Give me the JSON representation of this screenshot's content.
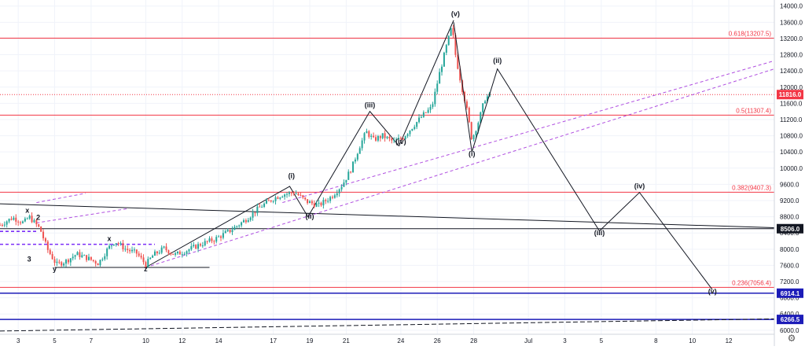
{
  "chart_data": {
    "type": "candlestick",
    "instrument_hint": "BTCUSD",
    "yticks": [
      6000,
      6400,
      6800,
      7200,
      7600,
      8000,
      8400,
      8800,
      9200,
      9600,
      10000,
      10400,
      10800,
      11200,
      11600,
      12000,
      12400,
      12800,
      13200,
      13600,
      14000
    ],
    "ylim": [
      5900,
      14150
    ],
    "xticks": [
      {
        "label": "3",
        "day": 3
      },
      {
        "label": "5",
        "day": 5
      },
      {
        "label": "7",
        "day": 7
      },
      {
        "label": "10",
        "day": 10
      },
      {
        "label": "12",
        "day": 12
      },
      {
        "label": "14",
        "day": 14
      },
      {
        "label": "17",
        "day": 17
      },
      {
        "label": "19",
        "day": 19
      },
      {
        "label": "21",
        "day": 21
      },
      {
        "label": "24",
        "day": 24
      },
      {
        "label": "26",
        "day": 26
      },
      {
        "label": "28",
        "day": 28
      },
      {
        "label": "Jul",
        "day": 31
      },
      {
        "label": "3",
        "day": 33
      },
      {
        "label": "5",
        "day": 35
      },
      {
        "label": "8",
        "day": 38
      },
      {
        "label": "10",
        "day": 40
      },
      {
        "label": "12",
        "day": 42
      }
    ],
    "xlim": [
      2.0,
      44.5
    ],
    "price_path": [
      [
        2.0,
        8600
      ],
      [
        2.7,
        8780
      ],
      [
        3.3,
        8650
      ],
      [
        3.6,
        8800
      ],
      [
        4.2,
        8500
      ],
      [
        4.6,
        8000
      ],
      [
        5.1,
        7620
      ],
      [
        5.6,
        7700
      ],
      [
        6.2,
        7880
      ],
      [
        6.8,
        7780
      ],
      [
        7.4,
        7650
      ],
      [
        7.9,
        8000
      ],
      [
        8.3,
        8200
      ],
      [
        8.9,
        8000
      ],
      [
        9.5,
        7900
      ],
      [
        10.0,
        7620
      ],
      [
        10.4,
        7850
      ],
      [
        11.0,
        8020
      ],
      [
        11.6,
        7860
      ],
      [
        12.3,
        7980
      ],
      [
        13.0,
        8120
      ],
      [
        13.8,
        8250
      ],
      [
        14.6,
        8450
      ],
      [
        15.4,
        8700
      ],
      [
        16.3,
        9050
      ],
      [
        17.0,
        9250
      ],
      [
        17.5,
        9350
      ],
      [
        18.2,
        9400
      ],
      [
        18.8,
        9180
      ],
      [
        19.5,
        9080
      ],
      [
        20.2,
        9300
      ],
      [
        20.8,
        9600
      ],
      [
        21.3,
        10000
      ],
      [
        21.7,
        10500
      ],
      [
        22.1,
        10900
      ],
      [
        22.5,
        10700
      ],
      [
        23.0,
        10800
      ],
      [
        23.6,
        10650
      ],
      [
        24.1,
        10750
      ],
      [
        24.6,
        11000
      ],
      [
        25.2,
        11300
      ],
      [
        25.7,
        11500
      ],
      [
        26.1,
        12300
      ],
      [
        26.5,
        13000
      ],
      [
        26.8,
        13500
      ],
      [
        27.0,
        12800
      ],
      [
        27.3,
        12100
      ],
      [
        27.6,
        11500
      ],
      [
        27.9,
        10700
      ],
      [
        28.3,
        11200
      ],
      [
        28.6,
        11700
      ],
      [
        28.9,
        11816
      ]
    ],
    "horizontal_lines": [
      {
        "name": "fib-0618",
        "label": "0.618(13207.5)",
        "value": 13207.5,
        "color": "#f23645"
      },
      {
        "name": "fib-05",
        "label": "0.5(11307.4)",
        "value": 11307.4,
        "color": "#f23645"
      },
      {
        "name": "fib-0382",
        "label": "0.382(9407.3)",
        "value": 9407.3,
        "color": "#f23645"
      },
      {
        "name": "fib-0236",
        "label": "0.236(7056.4)",
        "value": 7056.4,
        "color": "#f23645"
      },
      {
        "name": "level-8506",
        "label": "",
        "value": 8506.0,
        "color": "#131722"
      },
      {
        "name": "level-6914",
        "label": "",
        "value": 6914.1,
        "color": "#1c1cb8"
      },
      {
        "name": "level-6266",
        "label": "",
        "value": 6266.5,
        "color": "#1c1cb8"
      }
    ],
    "price_tags": [
      {
        "name": "current-price-tag",
        "value": 11816.0,
        "label": "11816.0",
        "bg": "#f23645",
        "fg": "#ffffff"
      },
      {
        "name": "level-8506-tag",
        "value": 8506.0,
        "label": "8506.0",
        "bg": "#131722",
        "fg": "#ffffff"
      },
      {
        "name": "level-6914-tag",
        "value": 6914.1,
        "label": "6914.1",
        "bg": "#1c1cb8",
        "fg": "#ffffff"
      },
      {
        "name": "level-6266-tag",
        "value": 6266.5,
        "label": "6266.5",
        "bg": "#1c1cb8",
        "fg": "#ffffff"
      }
    ],
    "wave_projection": [
      {
        "label": "(v)",
        "day": 26.9,
        "value": 13600
      },
      {
        "label": "(i)",
        "day": 27.9,
        "value": 10400
      },
      {
        "label": "(ii)",
        "day": 29.3,
        "value": 12450
      },
      {
        "label": "(iii)",
        "day": 34.9,
        "value": 8450
      },
      {
        "label": "(iv)",
        "day": 37.1,
        "value": 9400
      },
      {
        "label": "(v)",
        "day": 41.1,
        "value": 7000
      }
    ],
    "wave_labels": [
      {
        "label": "x",
        "day": 3.5,
        "value": 8900
      },
      {
        "label": "2",
        "day": 4.1,
        "value": 8720
      },
      {
        "label": "3",
        "day": 3.6,
        "value": 7700
      },
      {
        "label": "y",
        "day": 5.0,
        "value": 7450
      },
      {
        "label": "x",
        "day": 8.0,
        "value": 8200
      },
      {
        "label": "z",
        "day": 10.0,
        "value": 7450
      },
      {
        "label": "(i)",
        "day": 18.0,
        "value": 9750
      },
      {
        "label": "(ii)",
        "day": 19.0,
        "value": 8750
      },
      {
        "label": "(iii)",
        "day": 22.3,
        "value": 11500
      },
      {
        "label": "(iv)",
        "day": 24.0,
        "value": 10600
      },
      {
        "label": "(v)",
        "day": 27.0,
        "value": 13750
      },
      {
        "label": "(i)",
        "day": 27.9,
        "value": 10300
      },
      {
        "label": "(ii)",
        "day": 29.3,
        "value": 12600
      },
      {
        "label": "(iii)",
        "day": 34.9,
        "value": 8350
      },
      {
        "label": "(iv)",
        "day": 37.1,
        "value": 9500
      },
      {
        "label": "(v)",
        "day": 41.1,
        "value": 6900
      }
    ],
    "trendlines": [
      {
        "name": "long-descending-line",
        "from": [
          2.0,
          9120
        ],
        "to": [
          44.5,
          8530
        ],
        "color": "#131722",
        "dash": false
      },
      {
        "name": "channel-upper-dashed",
        "from": [
          17.5,
          9150
        ],
        "to": [
          44.5,
          12650
        ],
        "color": "#b04fe0",
        "dash": true
      },
      {
        "name": "channel-lower-dashed",
        "from": [
          10.0,
          7550
        ],
        "to": [
          44.5,
          12450
        ],
        "color": "#b04fe0",
        "dash": true
      },
      {
        "name": "early-upper-dashed",
        "from": [
          4.0,
          8650
        ],
        "to": [
          9.0,
          9000
        ],
        "color": "#b04fe0",
        "dash": true
      },
      {
        "name": "early-top-dashed",
        "from": [
          4.0,
          9150
        ],
        "to": [
          6.7,
          9380
        ],
        "color": "#b04fe0",
        "dash": true
      },
      {
        "name": "support-flat-line",
        "from": [
          5.0,
          7550
        ],
        "to": [
          13.5,
          7550
        ],
        "color": "#131722",
        "dash": false
      },
      {
        "name": "impulse-path",
        "polyline": [
          [
            10.0,
            7550
          ],
          [
            17.9,
            9550
          ],
          [
            18.9,
            8800
          ],
          [
            22.3,
            11400
          ],
          [
            23.9,
            10550
          ],
          [
            26.9,
            13650
          ]
        ],
        "color": "#131722",
        "dash": false
      },
      {
        "name": "purple-box-dashed",
        "from": [
          2.0,
          8120
        ],
        "to": [
          10.5,
          8120
        ],
        "color": "#7b2ff7",
        "dash": true
      },
      {
        "name": "purple-mid-dashed",
        "from": [
          2.0,
          8440
        ],
        "to": [
          4.0,
          8440
        ],
        "color": "#7b2ff7",
        "dash": true
      },
      {
        "name": "bottom-rising-dashed",
        "from": [
          2.0,
          5980
        ],
        "to": [
          44.5,
          6280
        ],
        "color": "#131722",
        "dash": true
      }
    ],
    "grid": true,
    "legend": "none"
  },
  "ui": {
    "settings_icon": "gear-icon"
  }
}
